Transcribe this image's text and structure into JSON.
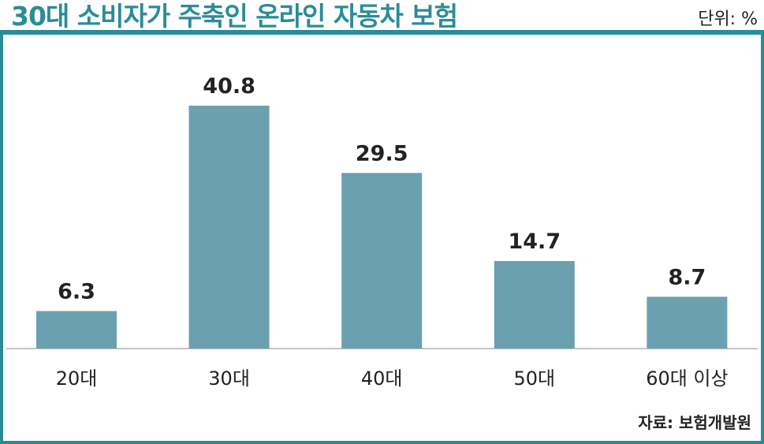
{
  "title": "30대 소비자가 주축인 온라인 자동차 보험",
  "unit_label": "단위: %",
  "source": "자료: 보험개발원",
  "colors": {
    "accent": "#2b8c97",
    "bar": "#6ba0b0",
    "text": "#222222"
  },
  "chart_data": {
    "type": "bar",
    "categories": [
      "20대",
      "30대",
      "40대",
      "50대",
      "60대 이상"
    ],
    "values": [
      6.3,
      40.8,
      29.5,
      14.7,
      8.7
    ],
    "data_labels": [
      "6.3",
      "40.8",
      "29.5",
      "14.7",
      "8.7"
    ],
    "title": "30대 소비자가 주축인 온라인 자동차 보험",
    "xlabel": "",
    "ylabel": "",
    "unit": "%",
    "ylim": [
      0,
      48
    ],
    "grid": false,
    "legend": "none"
  }
}
